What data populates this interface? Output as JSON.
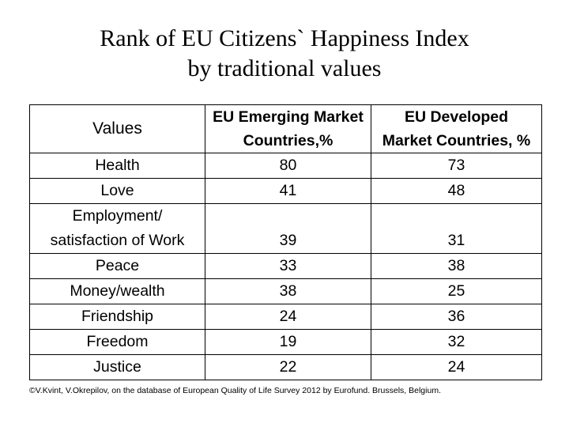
{
  "title": {
    "line1": "Rank of EU Citizens` Happiness Index",
    "line2": "by traditional values"
  },
  "table": {
    "headers": {
      "values": "Values",
      "emerging": [
        "EU Emerging Market",
        "Countries,%"
      ],
      "developed": [
        "EU Developed",
        "Market Countries, %"
      ]
    },
    "rows": [
      {
        "value": "Health",
        "emerging": "80",
        "developed": "73"
      },
      {
        "value": "Love",
        "emerging": "41",
        "developed": "48"
      },
      {
        "value_lines": [
          "Employment/",
          "satisfaction of Work"
        ],
        "emerging": "39",
        "developed": "31"
      },
      {
        "value": "Peace",
        "emerging": "33",
        "developed": "38"
      },
      {
        "value": "Money/wealth",
        "emerging": "38",
        "developed": "25"
      },
      {
        "value": "Friendship",
        "emerging": "24",
        "developed": "36"
      },
      {
        "value": "Freedom",
        "emerging": "19",
        "developed": "32"
      },
      {
        "value": "Justice",
        "emerging": "22",
        "developed": "24"
      }
    ]
  },
  "source": "©V.Kvint, V.Okrepilov, on the database of European Quality of Life Survey 2012 by Eurofund. Brussels, Belgium."
}
